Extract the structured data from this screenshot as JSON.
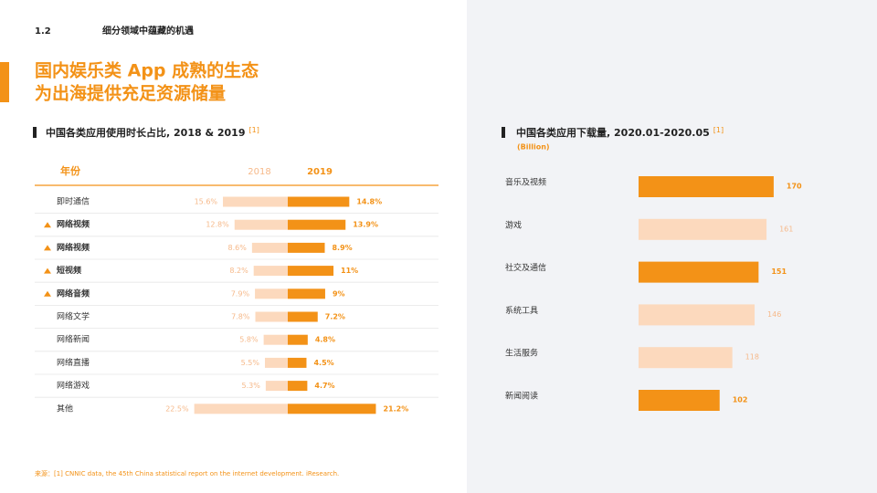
{
  "header": {
    "section": "1.2",
    "section_title": "细分领域中蕴藏的机遇",
    "headline": [
      "国内娱乐类 App 成熟的生态",
      "为出海提供充足资源储量"
    ]
  },
  "chart_data": [
    {
      "type": "diverging_bar",
      "title": "中国各类应用使用时长占比, 2018 & 2019",
      "title_ref": "[1]",
      "category_header": "年份",
      "categories": [
        "即时通信",
        "网络视频",
        "网络视频",
        "短视频",
        "网络音频",
        "网络文学",
        "网络新闻",
        "网络直播",
        "网络游戏",
        "其他"
      ],
      "highlighted": [
        false,
        true,
        true,
        true,
        true,
        false,
        false,
        false,
        false,
        false
      ],
      "series": [
        {
          "name": "2018",
          "color": "#fcd9bd",
          "values": [
            15.6,
            12.8,
            8.6,
            8.2,
            7.9,
            7.8,
            5.8,
            5.5,
            5.3,
            22.5
          ],
          "value_labels": [
            "15.6%",
            "12.8%",
            "8.6%",
            "8.2%",
            "7.9%",
            "7.8%",
            "5.8%",
            "5.5%",
            "5.3%",
            "22.5%"
          ]
        },
        {
          "name": "2019",
          "color": "#f39217",
          "values": [
            14.8,
            13.9,
            8.9,
            11,
            9,
            7.2,
            4.8,
            4.5,
            4.7,
            21.2
          ],
          "value_labels": [
            "14.8%",
            "13.9%",
            "8.9%",
            "11%",
            "9%",
            "7.2%",
            "4.8%",
            "4.5%",
            "4.7%",
            "21.2%"
          ]
        }
      ]
    },
    {
      "type": "bar",
      "title": "中国各类应用下载量, 2020.01-2020.05",
      "title_ref": "[1]",
      "subtitle": "(Billion)",
      "categories": [
        "音乐及视频",
        "游戏",
        "社交及通信",
        "系统工具",
        "生活服务",
        "新闻阅读"
      ],
      "values": [
        170,
        161,
        151,
        146,
        118,
        102
      ],
      "colors": [
        "#f39217",
        "#fcd9bd",
        "#f39217",
        "#fcd9bd",
        "#fcd9bd",
        "#f39217"
      ]
    }
  ],
  "footnote": "来源：[1] CNNIC data, the 45th China statistical report on the internet development. iResearch."
}
